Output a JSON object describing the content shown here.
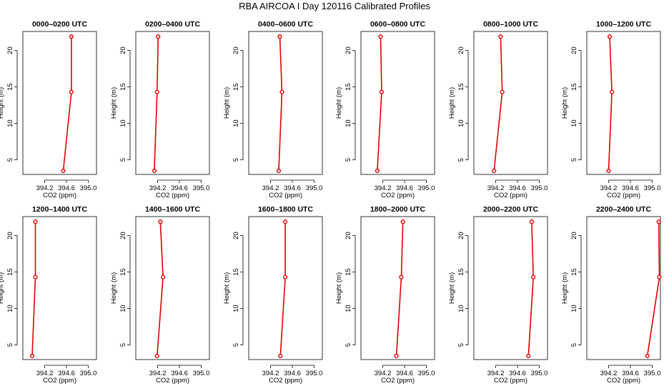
{
  "figure": {
    "title": "RBA AIRCOA I  Day 120116  Calibrated Profiles"
  },
  "style": {
    "line_color": "#e00000",
    "axis_color": "#000000"
  },
  "chart_data": [
    {
      "type": "line",
      "title": "0000–0200 UTC",
      "xlabel": "CO2 (ppm)",
      "ylabel": "Height (m)",
      "xlim": [
        393.8,
        395.15
      ],
      "ylim": [
        3.0,
        22.6
      ],
      "xticks": [
        "394.2",
        "394.6",
        "395.0"
      ],
      "yticks": [
        "5",
        "10",
        "15",
        "20"
      ],
      "x": [
        394.54,
        394.69,
        394.69
      ],
      "y": [
        3.5,
        14.3,
        21.9
      ]
    },
    {
      "type": "line",
      "title": "0200–0400 UTC",
      "xlabel": "CO2 (ppm)",
      "ylabel": "Height (m)",
      "xlim": [
        393.8,
        395.15
      ],
      "ylim": [
        3.0,
        22.6
      ],
      "xticks": [
        "394.2",
        "394.6",
        "395.0"
      ],
      "yticks": [
        "5",
        "10",
        "15",
        "20"
      ],
      "x": [
        394.14,
        394.19,
        394.21
      ],
      "y": [
        3.5,
        14.3,
        21.9
      ]
    },
    {
      "type": "line",
      "title": "0400–0600 UTC",
      "xlabel": "CO2 (ppm)",
      "ylabel": "Height (m)",
      "xlim": [
        393.8,
        395.15
      ],
      "ylim": [
        3.0,
        22.6
      ],
      "xticks": [
        "394.2",
        "394.6",
        "395.0"
      ],
      "yticks": [
        "5",
        "10",
        "15",
        "20"
      ],
      "x": [
        394.35,
        394.41,
        394.37
      ],
      "y": [
        3.5,
        14.3,
        21.9
      ]
    },
    {
      "type": "line",
      "title": "0600–0800 UTC",
      "xlabel": "CO2 (ppm)",
      "ylabel": "Height (m)",
      "xlim": [
        393.8,
        395.15
      ],
      "ylim": [
        3.0,
        22.6
      ],
      "xticks": [
        "394.2",
        "394.6",
        "395.0"
      ],
      "yticks": [
        "5",
        "10",
        "15",
        "20"
      ],
      "x": [
        394.1,
        394.18,
        394.16
      ],
      "y": [
        3.5,
        14.3,
        21.9
      ]
    },
    {
      "type": "line",
      "title": "0800–1000 UTC",
      "xlabel": "CO2 (ppm)",
      "ylabel": "Height (m)",
      "xlim": [
        393.8,
        395.15
      ],
      "ylim": [
        3.0,
        22.6
      ],
      "xticks": [
        "394.2",
        "394.6",
        "395.0"
      ],
      "yticks": [
        "5",
        "10",
        "15",
        "20"
      ],
      "x": [
        394.17,
        394.32,
        394.29
      ],
      "y": [
        3.5,
        14.3,
        21.9
      ]
    },
    {
      "type": "line",
      "title": "1000–1200 UTC",
      "xlabel": "CO2 (ppm)",
      "ylabel": "Height (m)",
      "xlim": [
        393.8,
        395.15
      ],
      "ylim": [
        3.0,
        22.6
      ],
      "xticks": [
        "394.2",
        "394.6",
        "395.0"
      ],
      "yticks": [
        "5",
        "10",
        "15",
        "20"
      ],
      "x": [
        394.2,
        394.26,
        394.22
      ],
      "y": [
        3.5,
        14.3,
        21.9
      ]
    },
    {
      "type": "line",
      "title": "1200–1400 UTC",
      "xlabel": "CO2 (ppm)",
      "ylabel": "Height (m)",
      "xlim": [
        393.8,
        395.15
      ],
      "ylim": [
        3.0,
        22.6
      ],
      "xticks": [
        "394.2",
        "394.6",
        "395.0"
      ],
      "yticks": [
        "5",
        "10",
        "15",
        "20"
      ],
      "x": [
        393.97,
        394.03,
        394.03
      ],
      "y": [
        3.5,
        14.3,
        21.9
      ]
    },
    {
      "type": "line",
      "title": "1400–1600 UTC",
      "xlabel": "CO2 (ppm)",
      "ylabel": "Height (m)",
      "xlim": [
        393.8,
        395.15
      ],
      "ylim": [
        3.0,
        22.6
      ],
      "xticks": [
        "394.2",
        "394.6",
        "395.0"
      ],
      "yticks": [
        "5",
        "10",
        "15",
        "20"
      ],
      "x": [
        394.19,
        394.3,
        394.25
      ],
      "y": [
        3.5,
        14.3,
        21.9
      ]
    },
    {
      "type": "line",
      "title": "1600–1800 UTC",
      "xlabel": "CO2 (ppm)",
      "ylabel": "Height (m)",
      "xlim": [
        393.8,
        395.15
      ],
      "ylim": [
        3.0,
        22.6
      ],
      "xticks": [
        "394.2",
        "394.6",
        "395.0"
      ],
      "yticks": [
        "5",
        "10",
        "15",
        "20"
      ],
      "x": [
        394.38,
        394.47,
        394.47
      ],
      "y": [
        3.5,
        14.3,
        21.9
      ]
    },
    {
      "type": "line",
      "title": "1800–2000 UTC",
      "xlabel": "CO2 (ppm)",
      "ylabel": "Height (m)",
      "xlim": [
        393.8,
        395.15
      ],
      "ylim": [
        3.0,
        22.6
      ],
      "xticks": [
        "394.2",
        "394.6",
        "395.0"
      ],
      "yticks": [
        "5",
        "10",
        "15",
        "20"
      ],
      "x": [
        394.45,
        394.54,
        394.57
      ],
      "y": [
        3.5,
        14.3,
        21.9
      ]
    },
    {
      "type": "line",
      "title": "2000–2200 UTC",
      "xlabel": "CO2 (ppm)",
      "ylabel": "Height (m)",
      "xlim": [
        393.8,
        395.15
      ],
      "ylim": [
        3.0,
        22.6
      ],
      "xticks": [
        "394.2",
        "394.6",
        "395.0"
      ],
      "yticks": [
        "5",
        "10",
        "15",
        "20"
      ],
      "x": [
        394.8,
        394.89,
        394.86
      ],
      "y": [
        3.5,
        14.3,
        21.9
      ]
    },
    {
      "type": "line",
      "title": "2200–2400 UTC",
      "xlabel": "CO2 (ppm)",
      "ylabel": "Height (m)",
      "xlim": [
        393.8,
        395.15
      ],
      "ylim": [
        3.0,
        22.6
      ],
      "xticks": [
        "394.2",
        "394.6",
        "395.0"
      ],
      "yticks": [
        "5",
        "10",
        "15",
        "20"
      ],
      "x": [
        394.91,
        395.13,
        395.12
      ],
      "y": [
        3.5,
        14.3,
        21.9
      ]
    }
  ]
}
